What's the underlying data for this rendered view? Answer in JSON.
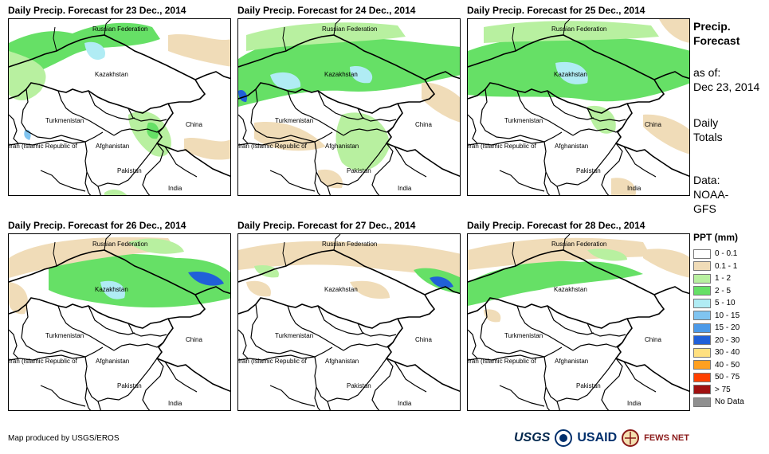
{
  "panels": [
    {
      "title": "Daily Precip. Forecast for 23 Dec., 2014",
      "precip_pattern": "p23"
    },
    {
      "title": "Daily Precip. Forecast for 24 Dec., 2014",
      "precip_pattern": "p24"
    },
    {
      "title": "Daily Precip. Forecast for 25 Dec., 2014",
      "precip_pattern": "p25"
    },
    {
      "title": "Daily Precip. Forecast for 26 Dec., 2014",
      "precip_pattern": "p26"
    },
    {
      "title": "Daily Precip. Forecast for 27 Dec., 2014",
      "precip_pattern": "p27"
    },
    {
      "title": "Daily Precip. Forecast for 28 Dec., 2014",
      "precip_pattern": "p28"
    }
  ],
  "country_labels": {
    "russia": "Russian Federation",
    "kazakhstan": "Kazakhstan",
    "turkmenistan": "Turkmenistan",
    "china": "China",
    "iran": "Iran (Islamic Republic of",
    "afghanistan": "Afghanistan",
    "pakistan": "Pakistan",
    "india": "India"
  },
  "side": {
    "heading_line1": "Precip.",
    "heading_line2": "Forecast",
    "asof_line1": "as of:",
    "asof_line2": "Dec 23, 2014",
    "totals_line1": "Daily",
    "totals_line2": "Totals",
    "data_line1": "Data:",
    "data_line2": "NOAA-",
    "data_line3": "GFS"
  },
  "legend": {
    "title": "PPT (mm)",
    "items": [
      {
        "label": "0 - 0.1",
        "color": "#ffffff"
      },
      {
        "label": "0.1 - 1",
        "color": "#f0dcb8"
      },
      {
        "label": "1 - 2",
        "color": "#b8f0a0"
      },
      {
        "label": "2 - 5",
        "color": "#66e066"
      },
      {
        "label": "5 - 10",
        "color": "#b0ecf4"
      },
      {
        "label": "10 - 15",
        "color": "#80c4f0"
      },
      {
        "label": "15 - 20",
        "color": "#4c9ae8"
      },
      {
        "label": "20 - 30",
        "color": "#2060d8"
      },
      {
        "label": "30 - 40",
        "color": "#ffe080"
      },
      {
        "label": "40 - 50",
        "color": "#ffa020"
      },
      {
        "label": "50 - 75",
        "color": "#ff4000"
      },
      {
        "label": "> 75",
        "color": "#a01010"
      },
      {
        "label": "No Data",
        "color": "#909090"
      }
    ]
  },
  "credit": "Map produced by USGS/EROS",
  "logos": {
    "usgs": "USGS",
    "usaid": "USAID",
    "fews": "FEWS NET"
  }
}
